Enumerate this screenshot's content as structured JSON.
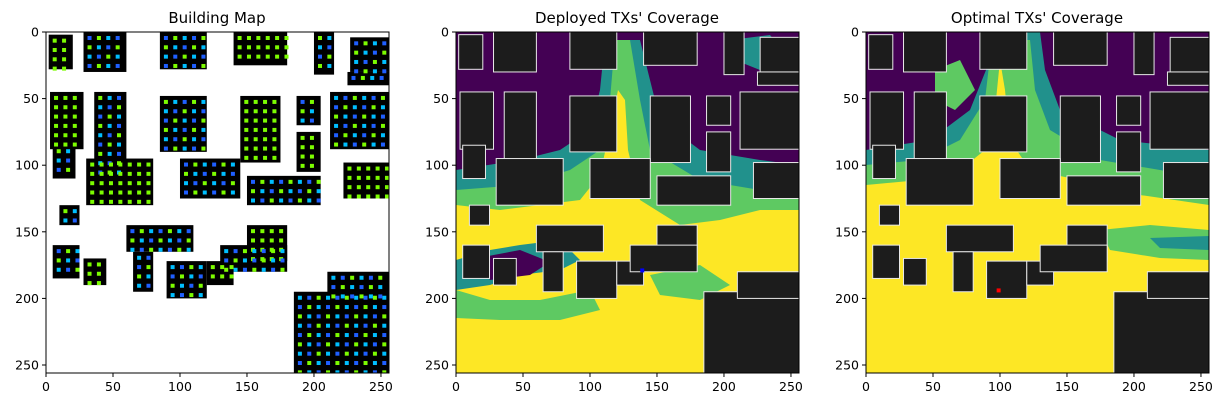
{
  "chart_data": [
    {
      "type": "heatmap",
      "title": "Building Map",
      "x_ticks": [
        0,
        50,
        100,
        150,
        200,
        250
      ],
      "y_ticks": [
        0,
        50,
        100,
        150,
        200,
        250
      ],
      "xlim": [
        0,
        256
      ],
      "ylim": [
        256,
        0
      ],
      "grid": false,
      "description_colors": {
        "background": "#ffffff",
        "buildings": "#000000",
        "markers": [
          "#7cfc00",
          "#00bfff",
          "#1f5fff"
        ]
      }
    },
    {
      "type": "heatmap",
      "title": "Deployed TXs' Coverage",
      "x_ticks": [
        0,
        50,
        100,
        150,
        200,
        250
      ],
      "y_ticks": [
        0,
        50,
        100,
        150,
        200,
        250
      ],
      "xlim": [
        0,
        256
      ],
      "ylim": [
        256,
        0
      ],
      "grid": false,
      "tx_marker": {
        "x": 139,
        "y": 179,
        "color": "#0000ff"
      },
      "colormap": [
        "#440154",
        "#21918c",
        "#5ec962",
        "#fde725"
      ]
    },
    {
      "type": "heatmap",
      "title": "Optimal TXs' Coverage",
      "x_ticks": [
        0,
        50,
        100,
        150,
        200,
        250
      ],
      "y_ticks": [
        0,
        50,
        100,
        150,
        200,
        250
      ],
      "xlim": [
        0,
        256
      ],
      "ylim": [
        256,
        0
      ],
      "grid": false,
      "tx_marker": {
        "x": 99,
        "y": 194,
        "color": "#ff0000"
      },
      "colormap": [
        "#440154",
        "#21918c",
        "#5ec962",
        "#fde725"
      ]
    }
  ]
}
